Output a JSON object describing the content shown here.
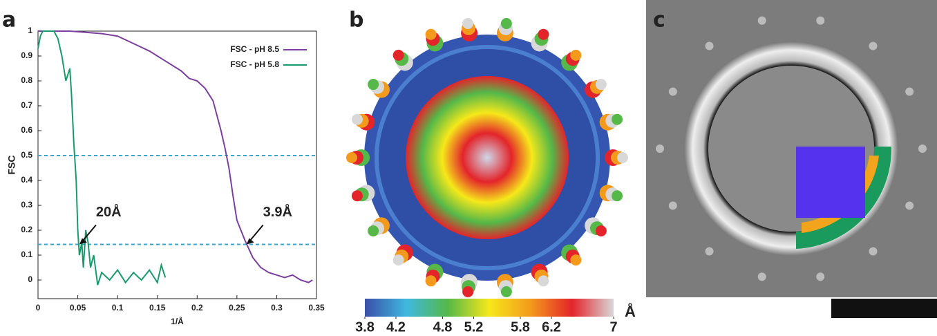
{
  "panel_labels": [
    "a",
    "b",
    "c"
  ],
  "chart_data": {
    "type": "line",
    "xlabel": "1/Å",
    "ylabel": "FSC",
    "xlim": [
      0,
      0.35
    ],
    "ylim": [
      -0.075,
      1
    ],
    "xticks": [
      0,
      0.05,
      0.1,
      0.15,
      0.2,
      0.25,
      0.3,
      0.35
    ],
    "yticks": [
      0,
      0.1,
      0.2,
      0.3,
      0.4,
      0.5,
      0.6,
      0.7,
      0.8,
      0.9,
      1
    ],
    "legend": "top-right",
    "hlines": {
      "values": [
        0.5,
        0.143
      ],
      "color": "#3aa6d0"
    },
    "series": [
      {
        "name": "FSC - pH 8.5",
        "color": "#7b3f9e",
        "x": [
          0,
          0.02,
          0.04,
          0.06,
          0.08,
          0.1,
          0.12,
          0.14,
          0.15,
          0.16,
          0.17,
          0.18,
          0.19,
          0.2,
          0.21,
          0.22,
          0.23,
          0.235,
          0.24,
          0.245,
          0.25,
          0.255,
          0.26,
          0.27,
          0.28,
          0.29,
          0.3,
          0.31,
          0.32,
          0.33,
          0.34,
          0.345
        ],
        "values": [
          1,
          1,
          1,
          0.995,
          0.99,
          0.98,
          0.95,
          0.92,
          0.9,
          0.88,
          0.86,
          0.84,
          0.81,
          0.8,
          0.77,
          0.72,
          0.6,
          0.53,
          0.45,
          0.34,
          0.24,
          0.2,
          0.16,
          0.09,
          0.05,
          0.03,
          0.02,
          0.01,
          0.02,
          0,
          -0.01,
          0
        ]
      },
      {
        "name": "FSC - pH 5.8",
        "color": "#1a9a6c",
        "x": [
          0,
          0.003,
          0.006,
          0.02,
          0.025,
          0.03,
          0.035,
          0.04,
          0.042,
          0.045,
          0.048,
          0.05,
          0.052,
          0.055,
          0.057,
          0.06,
          0.063,
          0.066,
          0.07,
          0.075,
          0.08,
          0.09,
          0.1,
          0.11,
          0.12,
          0.13,
          0.14,
          0.15,
          0.155,
          0.16
        ],
        "values": [
          0.93,
          0.98,
          1,
          1,
          0.97,
          0.9,
          0.8,
          0.85,
          0.75,
          0.55,
          0.4,
          0.2,
          0.1,
          0.15,
          0.05,
          0.2,
          0.15,
          0.05,
          0.1,
          -0.02,
          0.03,
          0,
          0.04,
          -0.01,
          0.03,
          0,
          0.04,
          -0.01,
          0.06,
          0.01
        ]
      }
    ],
    "annotations": [
      {
        "text": "20Å",
        "x": 0.052,
        "y": 0.143
      },
      {
        "text": "3.9Å",
        "x": 0.262,
        "y": 0.143
      }
    ]
  },
  "colorbar": {
    "lim": [
      3.8,
      7
    ],
    "ticks": [
      3.8,
      4.2,
      4.8,
      5.2,
      5.8,
      6.2,
      7
    ],
    "unit": "Å",
    "colors": [
      "#3a4fa8",
      "#3fb8e0",
      "#55b848",
      "#f6e81a",
      "#f39a1c",
      "#e3242b",
      "#d8d8d8"
    ]
  }
}
